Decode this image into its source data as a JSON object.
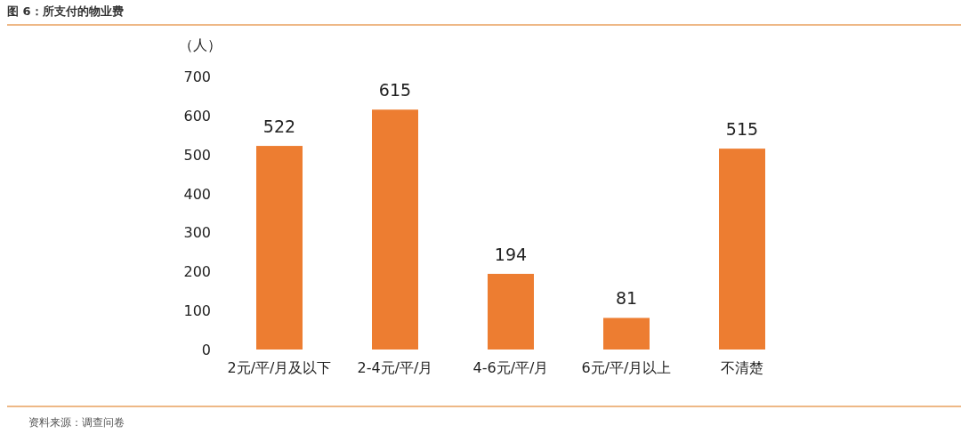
{
  "chart_data": {
    "type": "bar",
    "title": "图 6：所支付的物业费",
    "ylabel": "（人）",
    "categories": [
      "2元/平/月及以下",
      "2-4元/平/月",
      "4-6元/平/月",
      "6元/平/月以上",
      "不清楚"
    ],
    "values": [
      522,
      615,
      194,
      81,
      515
    ],
    "color": "#ed7d31",
    "ylim": [
      0,
      700
    ],
    "yticks": [
      0,
      100,
      200,
      300,
      400,
      500,
      600,
      700
    ],
    "data_labels": true,
    "annotations": [
      "资料来源：调查问卷"
    ]
  }
}
